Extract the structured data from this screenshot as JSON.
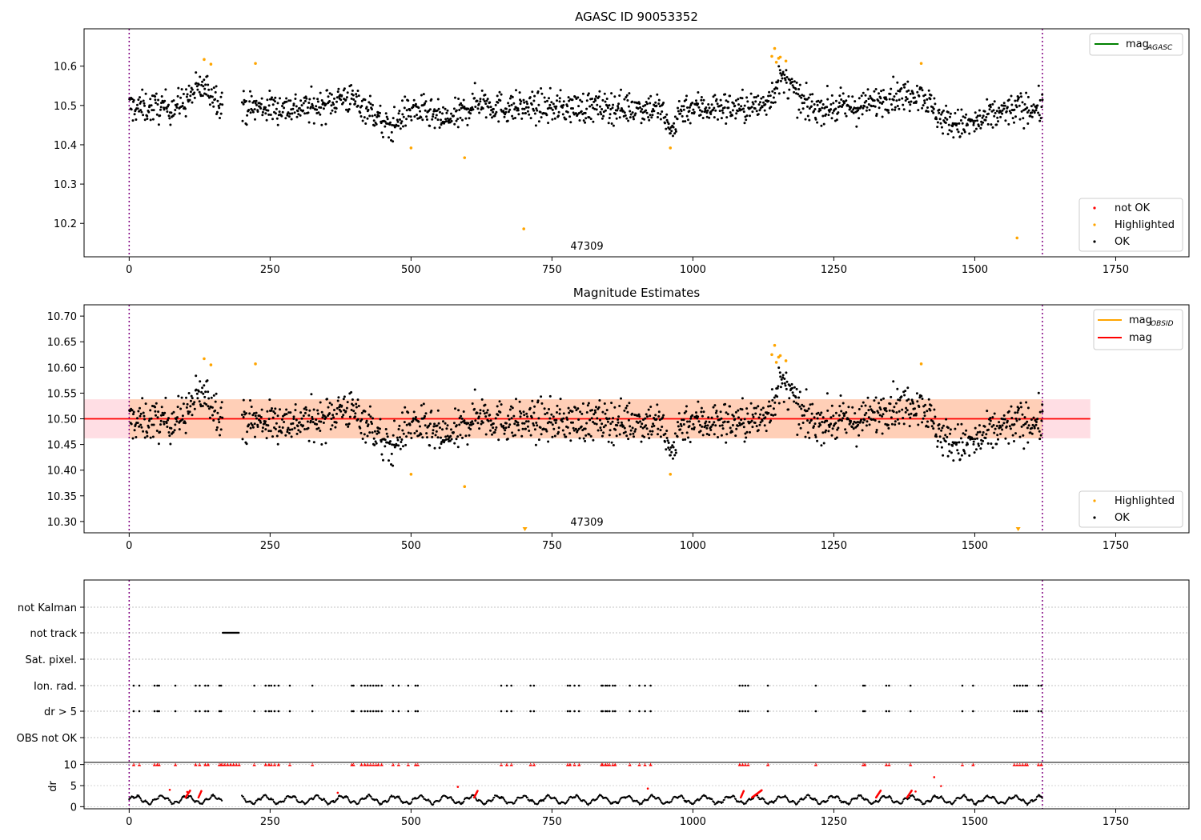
{
  "figure": {
    "title_top": "AGASC ID 90053352",
    "title_mid": "Magnitude Estimates",
    "obsid_label": "47309"
  },
  "chart_data": [
    {
      "type": "scatter",
      "title": "AGASC ID 90053352",
      "xlim": [
        -80,
        1880
      ],
      "ylim": [
        10.115,
        10.695
      ],
      "xticks": [
        0,
        250,
        500,
        750,
        1000,
        1250,
        1500,
        1750
      ],
      "yticks": [
        10.2,
        10.3,
        10.4,
        10.5,
        10.6
      ],
      "ytick_labels": [
        "10.2",
        "10.3",
        "10.4",
        "10.5",
        "10.6"
      ],
      "vlines": [
        0,
        1620
      ],
      "annotation": {
        "text": "47309",
        "x": 810,
        "y": 10.125
      },
      "legend_top": {
        "position": "top-right",
        "entries": [
          {
            "label": "mag",
            "sub": "AGASC",
            "color": "#008000"
          }
        ]
      },
      "legend_bottom": {
        "position": "bottom-right",
        "entries": [
          {
            "label": "not OK",
            "color": "#ff0000"
          },
          {
            "label": "Highlighted",
            "color": "#ffa500"
          },
          {
            "label": "OK",
            "color": "#000000"
          }
        ]
      },
      "highlighted": [
        [
          133,
          10.617
        ],
        [
          145,
          10.605
        ],
        [
          224,
          10.607
        ],
        [
          500,
          10.392
        ],
        [
          595,
          10.367
        ],
        [
          700,
          10.186
        ],
        [
          960,
          10.392
        ],
        [
          1140,
          10.625
        ],
        [
          1145,
          10.645
        ],
        [
          1148,
          10.61
        ],
        [
          1152,
          10.62
        ],
        [
          1155,
          10.623
        ],
        [
          1165,
          10.613
        ],
        [
          1405,
          10.607
        ],
        [
          1575,
          10.163
        ]
      ]
    },
    {
      "type": "scatter",
      "title": "Magnitude Estimates",
      "xlim": [
        -80,
        1880
      ],
      "ylim": [
        10.278,
        10.722
      ],
      "xticks": [
        0,
        250,
        500,
        750,
        1000,
        1250,
        1500,
        1750
      ],
      "yticks": [
        10.3,
        10.35,
        10.4,
        10.45,
        10.5,
        10.55,
        10.6,
        10.65,
        10.7
      ],
      "ytick_labels": [
        "10.30",
        "10.35",
        "10.40",
        "10.45",
        "10.50",
        "10.55",
        "10.60",
        "10.65",
        "10.70"
      ],
      "mag_line": 10.5,
      "band_low": 10.462,
      "band_high": 10.538,
      "band_x": [
        0,
        1705
      ],
      "vlines": [
        0,
        1620
      ],
      "annotation": {
        "text": "47309",
        "x": 810,
        "y": 10.288
      },
      "legend_top": {
        "position": "top-right",
        "entries": [
          {
            "label": "mag",
            "sub": "OBSID",
            "color": "#ffa500"
          },
          {
            "label": "mag",
            "color": "#ff0000"
          }
        ]
      },
      "legend_bottom": {
        "position": "bottom-right",
        "entries": [
          {
            "label": "Highlighted",
            "color": "#ffa500"
          },
          {
            "label": "OK",
            "color": "#000000"
          }
        ]
      },
      "highlighted": [
        [
          133,
          10.617
        ],
        [
          145,
          10.605
        ],
        [
          224,
          10.607
        ],
        [
          500,
          10.392
        ],
        [
          595,
          10.368
        ],
        [
          960,
          10.392
        ],
        [
          1140,
          10.625
        ],
        [
          1145,
          10.643
        ],
        [
          1148,
          10.61
        ],
        [
          1152,
          10.62
        ],
        [
          1155,
          10.623
        ],
        [
          1165,
          10.613
        ],
        [
          1405,
          10.607
        ]
      ],
      "offscale_markers": [
        702,
        1577
      ]
    },
    {
      "type": "scatter",
      "xlim": [
        -80,
        1880
      ],
      "xticks": [
        0,
        250,
        500,
        750,
        1000,
        1250,
        1500,
        1750
      ],
      "flag_rows": [
        "not Kalman",
        "not track",
        "Sat. pixel.",
        "Ion. rad.",
        "dr > 5",
        "OBS not OK"
      ],
      "not_track_range": [
        166,
        195
      ],
      "flag_x": [
        8,
        18,
        45,
        50,
        53,
        82,
        118,
        125,
        135,
        140,
        160,
        163,
        222,
        242,
        248,
        252,
        258,
        265,
        285,
        325,
        395,
        398,
        412,
        418,
        423,
        428,
        433,
        438,
        442,
        448,
        468,
        478,
        495,
        508,
        512,
        660,
        670,
        678,
        712,
        718,
        778,
        782,
        790,
        798,
        838,
        840,
        845,
        848,
        852,
        858,
        862,
        888,
        905,
        915,
        925,
        1083,
        1088,
        1093,
        1098,
        1133,
        1218,
        1302,
        1305,
        1343,
        1348,
        1386,
        1478,
        1497,
        1570,
        1575,
        1580,
        1585,
        1590,
        1593,
        1613,
        1618
      ],
      "dr_ylabel": "dr",
      "dr_ylim": [
        -0.5,
        10.5
      ],
      "dr_yticks": [
        0,
        5,
        10
      ],
      "dr_outliers": [
        [
          72,
          4
        ],
        [
          103,
          3.5
        ],
        [
          370,
          3.3
        ],
        [
          583,
          4.7
        ],
        [
          920,
          4.3
        ],
        [
          1395,
          3.6
        ],
        [
          1428,
          7
        ],
        [
          1440,
          4.9
        ]
      ]
    }
  ]
}
